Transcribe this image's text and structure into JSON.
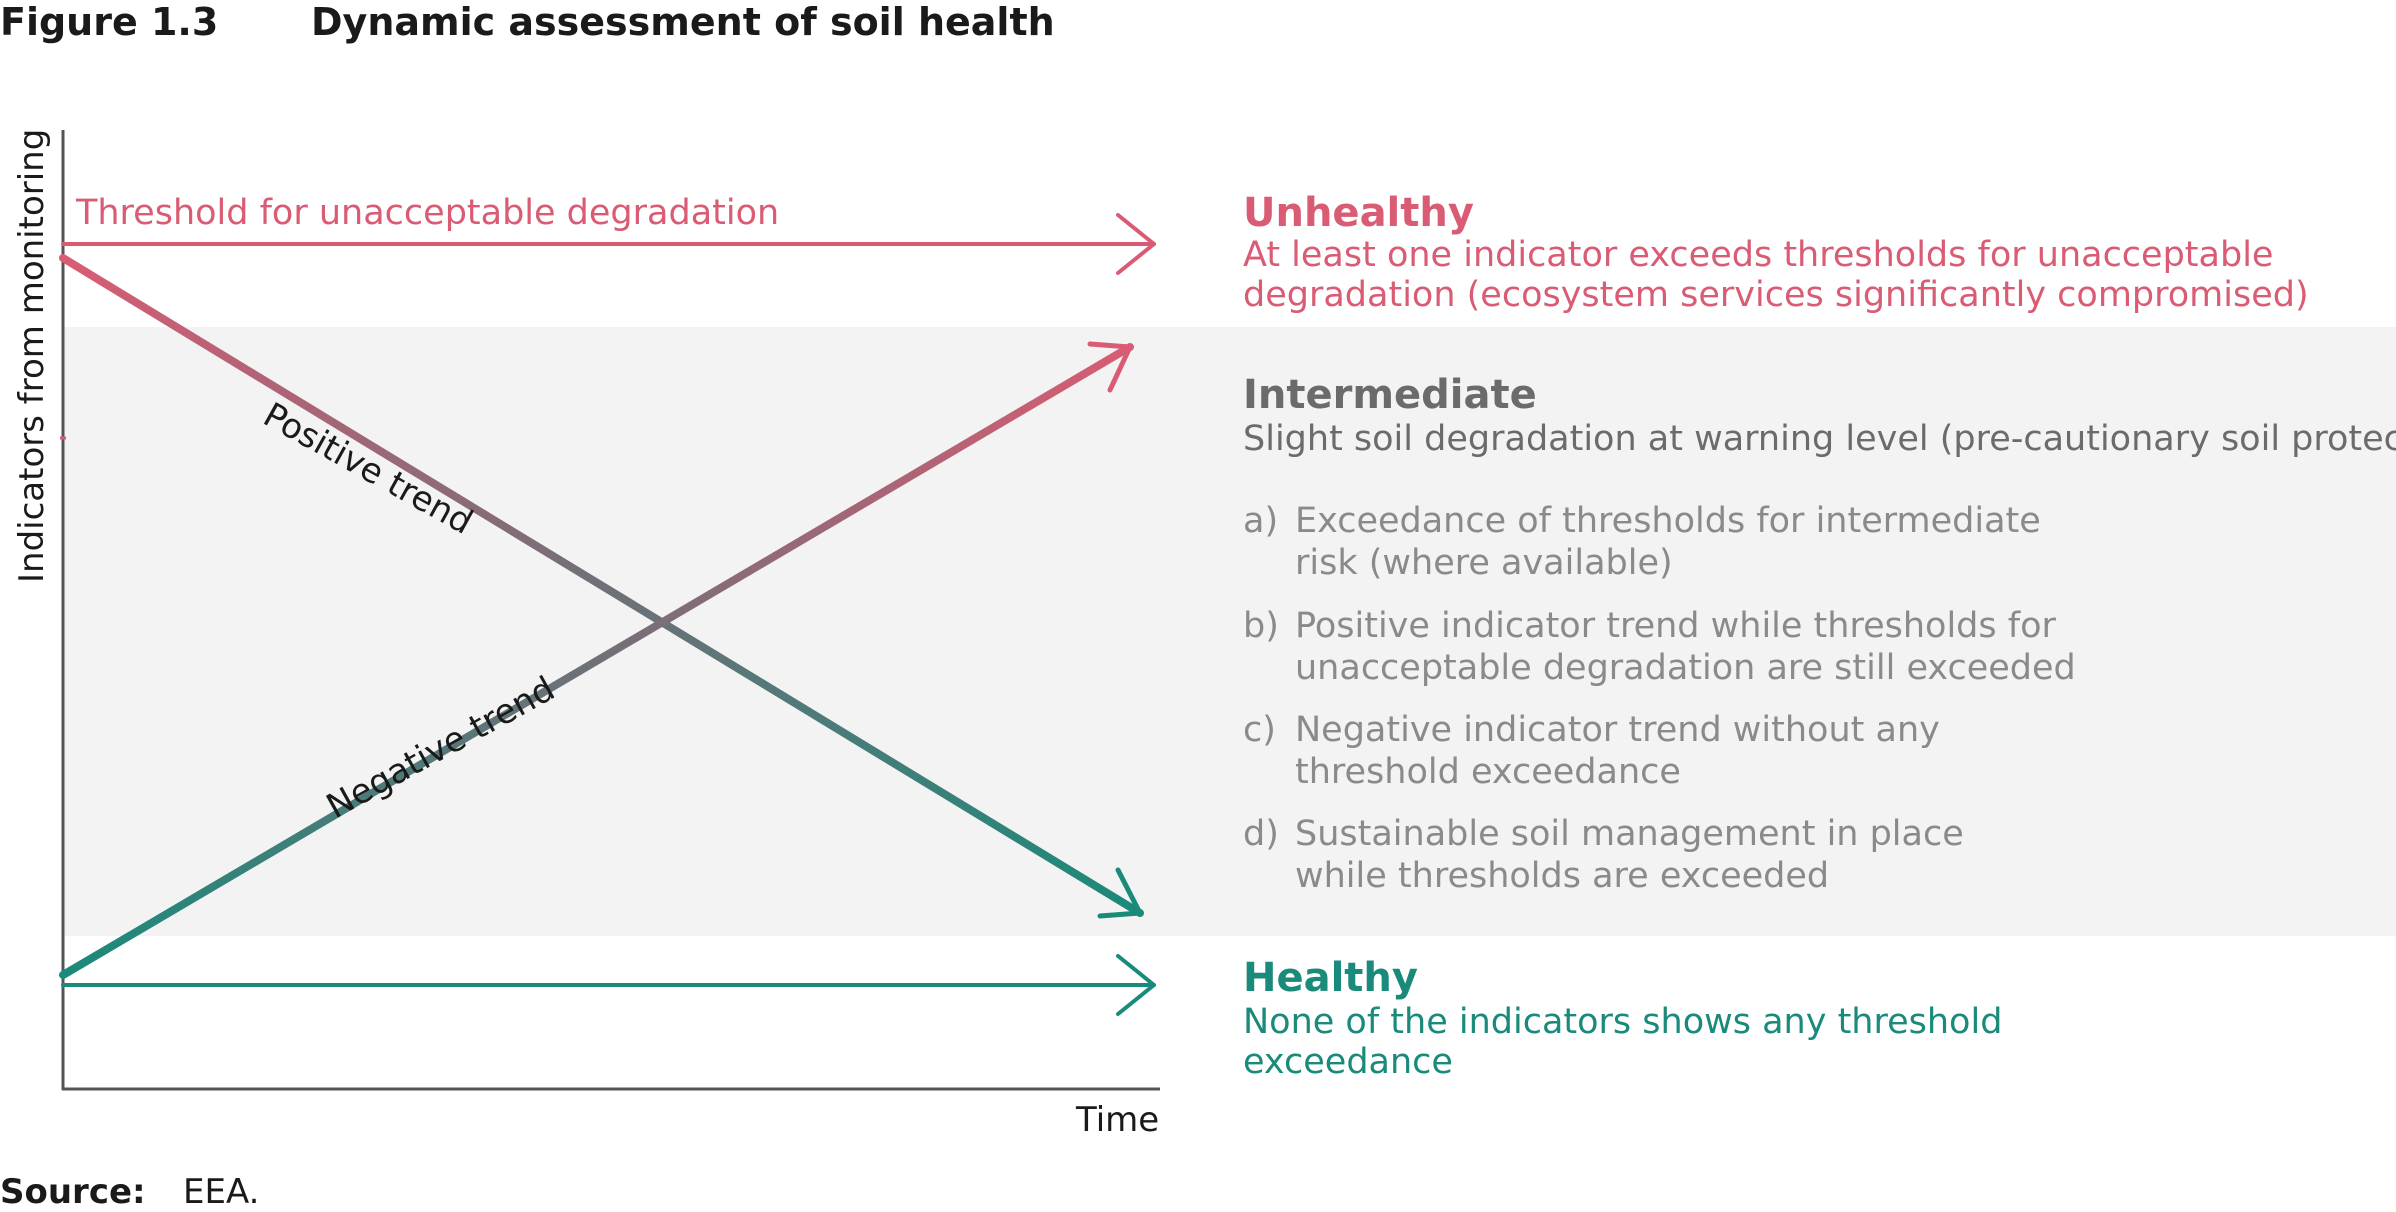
{
  "figure": {
    "number": "Figure 1.3",
    "title": "Dynamic assessment of soil health"
  },
  "axes": {
    "ylabel": "Indicators from monitoring",
    "xlabel": "Time"
  },
  "threshold": {
    "label": "Threshold for unacceptable degradation"
  },
  "trends": {
    "positive": "Positive trend",
    "negative": "Negative trend"
  },
  "states": {
    "unhealthy": {
      "title": "Unhealthy",
      "lines": [
        "At least one indicator exceeds thresholds for unacceptable",
        "degradation (ecosystem services significantly compromised)"
      ]
    },
    "intermediate": {
      "title": "Intermediate",
      "description": "Slight soil degradation at warning level (pre-cautionary soil protection)",
      "criteria": [
        {
          "letter": "a)",
          "lines": [
            "Exceedance of thresholds for intermediate",
            "risk (where available)"
          ]
        },
        {
          "letter": "b)",
          "lines": [
            "Positive indicator trend while thresholds for",
            "unacceptable degradation are still exceeded"
          ]
        },
        {
          "letter": "c)",
          "lines": [
            "Negative indicator trend without any",
            "threshold exceedance"
          ]
        },
        {
          "letter": "d)",
          "lines": [
            "Sustainable soil management in place",
            "while thresholds are exceeded"
          ]
        }
      ]
    },
    "healthy": {
      "title": "Healthy",
      "lines": [
        "None of the indicators shows any threshold",
        "exceedance"
      ]
    }
  },
  "source": {
    "label": "Source:",
    "text": "EEA."
  },
  "colors": {
    "unhealthy": "#d95c74",
    "intermediate": "#6b6b6b",
    "healthy": "#1a8a7a",
    "band": "#f3f3f3"
  }
}
